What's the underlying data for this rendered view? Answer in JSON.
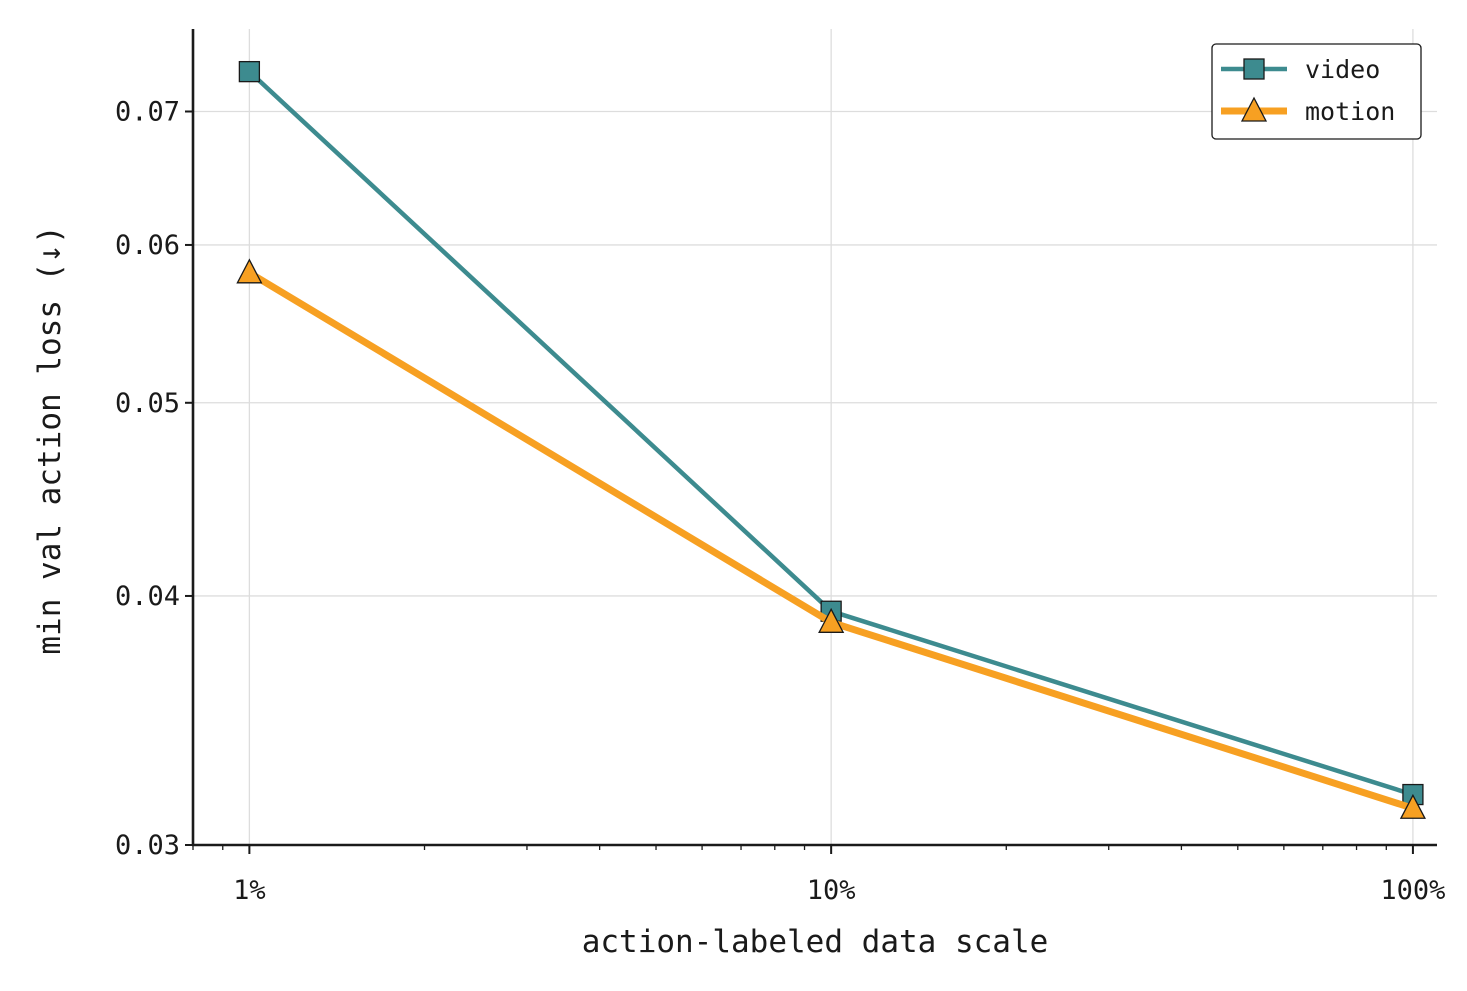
{
  "chart_data": {
    "type": "line",
    "title": "",
    "xlabel": "action-labeled data scale",
    "ylabel": "min val action loss  (↓)",
    "x_scale": "log",
    "y_scale": "log",
    "x": [
      1,
      10,
      100
    ],
    "x_tick_labels": [
      "1%",
      "10%",
      "100%"
    ],
    "xlim": [
      0.8,
      110
    ],
    "ylim": [
      0.03,
      0.077
    ],
    "y_ticks": [
      0.03,
      0.04,
      0.05,
      0.06,
      0.07
    ],
    "y_tick_labels": [
      "0.03",
      "0.04",
      "0.05",
      "0.06",
      "0.07"
    ],
    "grid": true,
    "legend_position": "top-right",
    "series": [
      {
        "name": "video",
        "values": [
          0.0733,
          0.0393,
          0.0318
        ],
        "color": "#3d8b8f",
        "marker": "square"
      },
      {
        "name": "motion",
        "values": [
          0.0581,
          0.0388,
          0.0313
        ],
        "color": "#f7a022",
        "marker": "triangle"
      }
    ]
  }
}
